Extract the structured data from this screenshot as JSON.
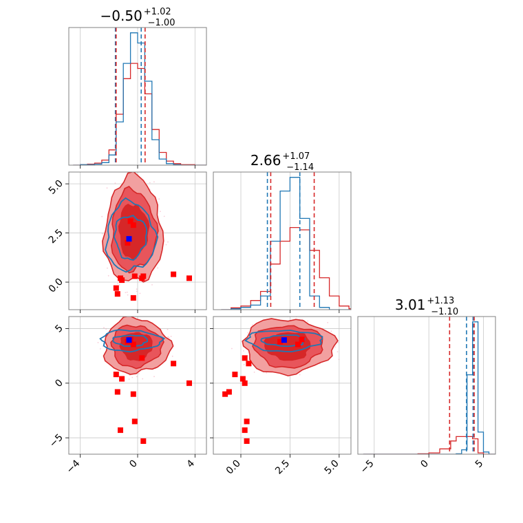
{
  "chart_data": {
    "type": "corner",
    "colors": {
      "blue": "#1f77b4",
      "red": "#d62728",
      "marker_red": "#ff0000",
      "marker_blue": "#0000ff",
      "grid": "#c8c8c8"
    },
    "grid": true,
    "params": [
      {
        "title_median": "−0.50",
        "title_plus": "+1.02",
        "title_minus": "−1.00",
        "range": [
          -4.8,
          4.8
        ]
      },
      {
        "title_median": "2.66",
        "title_plus": "+1.07",
        "title_minus": "−1.14",
        "range": [
          -1.4,
          5.6
        ]
      },
      {
        "title_median": "3.01",
        "title_plus": "+1.13",
        "title_minus": "−1.10",
        "range": [
          -6.5,
          6.1
        ]
      }
    ],
    "x_ticks": [
      {
        "values": [
          -4,
          0,
          4
        ],
        "labels": [
          "−4",
          "0",
          "4"
        ]
      },
      {
        "values": [
          0,
          2.5,
          5
        ],
        "labels": [
          "0.0",
          "2.5",
          "5.0"
        ]
      },
      {
        "values": [
          -5,
          0,
          5
        ],
        "labels": [
          "−5",
          "0",
          "5"
        ]
      }
    ],
    "y_ticks": [
      {
        "row": 1,
        "values": [
          0,
          2.5,
          5
        ],
        "labels": [
          "0.0",
          "2.5",
          "5.0"
        ]
      },
      {
        "row": 2,
        "values": [
          -5,
          0,
          5
        ],
        "labels": [
          "−5",
          "0",
          "5"
        ]
      }
    ],
    "quantile_lines": {
      "blue": [
        [
          -1.55,
          0.25
        ],
        [
          1.35,
          3.0
        ],
        [
          3.45,
          4.05
        ]
      ],
      "red": [
        [
          -1.5,
          0.52
        ],
        [
          1.52,
          3.73
        ],
        [
          1.9,
          4.15
        ]
      ]
    },
    "red_points": [
      [
        -0.3,
        2.9,
        3.55
      ],
      [
        -0.5,
        3.1,
        4.0
      ],
      [
        -0.7,
        2.0,
        3.8
      ],
      [
        0.3,
        0.2,
        2.3
      ],
      [
        -1.1,
        0.1,
        0.4
      ],
      [
        -1.5,
        -0.3,
        0.8
      ],
      [
        -1.4,
        -0.6,
        -0.8
      ],
      [
        -0.3,
        -0.8,
        -1.0
      ],
      [
        2.5,
        0.4,
        1.8
      ],
      [
        3.6,
        0.2,
        0.0
      ],
      [
        -0.2,
        0.3,
        -3.5
      ],
      [
        -1.2,
        0.2,
        -4.3
      ],
      [
        0.4,
        0.3,
        -5.3
      ]
    ],
    "truth_point": [
      -0.6,
      2.2,
      3.95
    ],
    "hist_bins_x": {
      "p0": [
        -4.5,
        -4.0,
        -3.5,
        -3.0,
        -2.5,
        -2.0,
        -1.5,
        -1.0,
        -0.5,
        0.0,
        0.5,
        1.0,
        1.5,
        2.0,
        2.5,
        3.0,
        3.5,
        4.0,
        4.5
      ],
      "p1": [
        -1.0,
        -0.5,
        0.0,
        0.5,
        1.0,
        1.5,
        2.0,
        2.5,
        3.0,
        3.5,
        4.0,
        4.5,
        5.0,
        5.5
      ],
      "p2": [
        -6.0,
        -5.0,
        -4.0,
        -3.0,
        -2.0,
        -1.0,
        0.0,
        1.0,
        2.0,
        2.5,
        3.0,
        3.5,
        4.0,
        4.5,
        5.0,
        5.5,
        6.0
      ]
    },
    "hist_blue": {
      "p0": [
        0,
        1,
        1,
        2,
        5,
        20,
        85,
        200,
        260,
        240,
        165,
        50,
        12,
        3,
        1,
        0,
        0,
        0,
        0
      ],
      "p1": [
        0,
        2,
        5,
        10,
        30,
        150,
        260,
        290,
        200,
        30,
        5,
        0,
        0,
        0
      ],
      "p2": [
        0,
        0,
        0,
        0,
        0,
        0,
        0,
        0,
        0,
        1,
        10,
        180,
        300,
        50,
        5,
        0,
        0
      ]
    },
    "hist_red": {
      "p0": [
        0,
        1,
        2,
        4,
        10,
        30,
        100,
        170,
        200,
        190,
        140,
        70,
        25,
        8,
        3,
        1,
        1,
        0,
        0
      ],
      "p1": [
        0,
        4,
        8,
        20,
        40,
        100,
        150,
        180,
        175,
        130,
        70,
        30,
        8,
        2
      ],
      "p2": [
        0,
        0,
        0,
        0,
        0,
        1,
        3,
        12,
        30,
        40,
        40,
        40,
        35,
        3,
        0,
        0,
        0
      ]
    }
  }
}
